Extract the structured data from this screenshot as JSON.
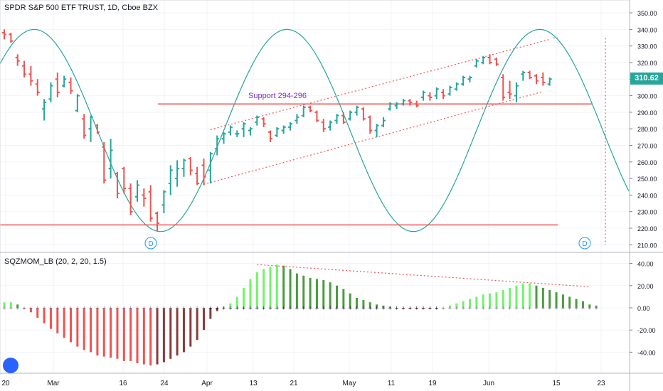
{
  "chart_data": [
    {
      "type": "ohlc",
      "title": "SPDR S&P 500 ETF TRUST, 1D, Cboe BZX",
      "last_price_label": "310.62",
      "ylim": [
        205,
        354
      ],
      "yticks": [
        "210.00",
        "220.00",
        "230.00",
        "240.00",
        "250.00",
        "260.00",
        "270.00",
        "280.00",
        "290.00",
        "300.00",
        "310.00",
        "320.00",
        "330.00",
        "340.00",
        "350.00"
      ],
      "xticks": [
        "20",
        "Mar",
        "16",
        "24",
        "Apr",
        "13",
        "21",
        "May",
        "11",
        "19",
        "Jun",
        "15",
        "23"
      ],
      "colors": {
        "up": "#26a69a",
        "down": "#ef5350"
      },
      "bars": [
        {
          "o": 338,
          "h": 340,
          "l": 334,
          "c": 337
        },
        {
          "o": 337,
          "h": 338,
          "l": 332,
          "c": 333
        },
        {
          "o": 323,
          "h": 325,
          "l": 318,
          "c": 321
        },
        {
          "o": 318,
          "h": 321,
          "l": 311,
          "c": 313
        },
        {
          "o": 313,
          "h": 318,
          "l": 306,
          "c": 309
        },
        {
          "o": 307,
          "h": 310,
          "l": 300,
          "c": 302
        },
        {
          "o": 292,
          "h": 298,
          "l": 285,
          "c": 296
        },
        {
          "o": 298,
          "h": 308,
          "l": 296,
          "c": 306
        },
        {
          "o": 310,
          "h": 314,
          "l": 299,
          "c": 302
        },
        {
          "o": 306,
          "h": 312,
          "l": 305,
          "c": 310
        },
        {
          "o": 308,
          "h": 311,
          "l": 301,
          "c": 303
        },
        {
          "o": 291,
          "h": 301,
          "l": 290,
          "c": 300
        },
        {
          "o": 286,
          "h": 289,
          "l": 274,
          "c": 276
        },
        {
          "o": 280,
          "h": 288,
          "l": 272,
          "c": 287
        },
        {
          "o": 282,
          "h": 283,
          "l": 277,
          "c": 278
        },
        {
          "o": 269,
          "h": 272,
          "l": 247,
          "c": 249
        },
        {
          "o": 256,
          "h": 274,
          "l": 250,
          "c": 267
        },
        {
          "o": 253,
          "h": 254,
          "l": 238,
          "c": 241
        },
        {
          "o": 256,
          "h": 257,
          "l": 241,
          "c": 244
        },
        {
          "o": 244,
          "h": 247,
          "l": 228,
          "c": 230
        },
        {
          "o": 239,
          "h": 249,
          "l": 236,
          "c": 246
        },
        {
          "o": 240,
          "h": 244,
          "l": 233,
          "c": 238
        },
        {
          "o": 242,
          "h": 246,
          "l": 224,
          "c": 226
        },
        {
          "o": 229,
          "h": 230,
          "l": 218,
          "c": 223
        },
        {
          "o": 234,
          "h": 243,
          "l": 229,
          "c": 242
        },
        {
          "o": 247,
          "h": 258,
          "l": 240,
          "c": 255
        },
        {
          "o": 250,
          "h": 261,
          "l": 245,
          "c": 256
        },
        {
          "o": 256,
          "h": 262,
          "l": 251,
          "c": 261
        },
        {
          "o": 262,
          "h": 263,
          "l": 252,
          "c": 255
        },
        {
          "o": 253,
          "h": 257,
          "l": 246,
          "c": 247
        },
        {
          "o": 258,
          "h": 262,
          "l": 246,
          "c": 251
        },
        {
          "o": 255,
          "h": 266,
          "l": 247,
          "c": 265
        },
        {
          "o": 268,
          "h": 276,
          "l": 264,
          "c": 274
        },
        {
          "o": 274,
          "h": 278,
          "l": 271,
          "c": 277
        },
        {
          "o": 278,
          "h": 282,
          "l": 276,
          "c": 281
        },
        {
          "o": 277,
          "h": 279,
          "l": 275,
          "c": 277
        },
        {
          "o": 280,
          "h": 284,
          "l": 275,
          "c": 283
        },
        {
          "o": 279,
          "h": 281,
          "l": 276,
          "c": 280
        },
        {
          "o": 284,
          "h": 288,
          "l": 282,
          "c": 287
        },
        {
          "o": 286,
          "h": 287,
          "l": 281,
          "c": 283
        },
        {
          "o": 278,
          "h": 279,
          "l": 272,
          "c": 274
        },
        {
          "o": 276,
          "h": 281,
          "l": 275,
          "c": 280
        },
        {
          "o": 279,
          "h": 282,
          "l": 277,
          "c": 281
        },
        {
          "o": 281,
          "h": 284,
          "l": 279,
          "c": 283
        },
        {
          "o": 285,
          "h": 289,
          "l": 283,
          "c": 287
        },
        {
          "o": 288,
          "h": 294,
          "l": 287,
          "c": 293
        },
        {
          "o": 293,
          "h": 294,
          "l": 290,
          "c": 291
        },
        {
          "o": 290,
          "h": 291,
          "l": 284,
          "c": 285
        },
        {
          "o": 284,
          "h": 286,
          "l": 278,
          "c": 280
        },
        {
          "o": 281,
          "h": 285,
          "l": 279,
          "c": 284
        },
        {
          "o": 285,
          "h": 289,
          "l": 283,
          "c": 288
        },
        {
          "o": 288,
          "h": 290,
          "l": 283,
          "c": 284
        },
        {
          "o": 286,
          "h": 291,
          "l": 285,
          "c": 290
        },
        {
          "o": 290,
          "h": 294,
          "l": 288,
          "c": 293
        },
        {
          "o": 292,
          "h": 293,
          "l": 285,
          "c": 286
        },
        {
          "o": 287,
          "h": 288,
          "l": 277,
          "c": 279
        },
        {
          "o": 279,
          "h": 283,
          "l": 275,
          "c": 282
        },
        {
          "o": 282,
          "h": 287,
          "l": 281,
          "c": 285
        },
        {
          "o": 292,
          "h": 296,
          "l": 291,
          "c": 295
        },
        {
          "o": 294,
          "h": 296,
          "l": 292,
          "c": 295
        },
        {
          "o": 295,
          "h": 298,
          "l": 294,
          "c": 297
        },
        {
          "o": 297,
          "h": 298,
          "l": 294,
          "c": 296
        },
        {
          "o": 295,
          "h": 297,
          "l": 293,
          "c": 294
        },
        {
          "o": 299,
          "h": 303,
          "l": 297,
          "c": 302
        },
        {
          "o": 300,
          "h": 302,
          "l": 297,
          "c": 299
        },
        {
          "o": 300,
          "h": 305,
          "l": 298,
          "c": 304
        },
        {
          "o": 302,
          "h": 304,
          "l": 298,
          "c": 300
        },
        {
          "o": 301,
          "h": 306,
          "l": 300,
          "c": 305
        },
        {
          "o": 304,
          "h": 308,
          "l": 303,
          "c": 307
        },
        {
          "o": 307,
          "h": 312,
          "l": 306,
          "c": 311
        },
        {
          "o": 310,
          "h": 312,
          "l": 308,
          "c": 311
        },
        {
          "o": 318,
          "h": 322,
          "l": 317,
          "c": 321
        },
        {
          "o": 320,
          "h": 324,
          "l": 319,
          "c": 323
        },
        {
          "o": 323,
          "h": 325,
          "l": 319,
          "c": 320
        },
        {
          "o": 322,
          "h": 323,
          "l": 318,
          "c": 319
        },
        {
          "o": 311,
          "h": 313,
          "l": 297,
          "c": 299
        },
        {
          "o": 302,
          "h": 309,
          "l": 298,
          "c": 301
        },
        {
          "o": 300,
          "h": 308,
          "l": 296,
          "c": 306
        },
        {
          "o": 313,
          "h": 315,
          "l": 309,
          "c": 314
        },
        {
          "o": 314,
          "h": 315,
          "l": 310,
          "c": 311
        },
        {
          "o": 312,
          "h": 313,
          "l": 307,
          "c": 309
        },
        {
          "o": 311,
          "h": 314,
          "l": 306,
          "c": 308
        },
        {
          "o": 307,
          "h": 311,
          "l": 306,
          "c": 310
        }
      ],
      "annotations": {
        "support_text": "Support 294-296",
        "event_markers": [
          "D",
          "D"
        ],
        "support_level": 295,
        "low_level": 222,
        "cycle": {
          "low_value": 218,
          "high_value": 340,
          "low_bars": [
            23.5,
            61.5
          ],
          "high_bars": [
            42.5,
            80.5
          ]
        },
        "channel_upper": [
          [
            31,
            279.5
          ],
          [
            82,
            334
          ]
        ],
        "channel_lower": [
          [
            30,
            246.5
          ],
          [
            81,
            302.5
          ]
        ],
        "dividend_projection_to": 210
      }
    },
    {
      "type": "histogram",
      "title": "SQZMOM_LB (20, 2, 20, 1.5)",
      "ylim": [
        -62,
        46
      ],
      "yticks": [
        "40.00",
        "20.00",
        "0.00",
        "-20.00",
        "-40.00"
      ],
      "values": [
        5,
        5,
        3,
        -1,
        -4,
        -9,
        -14,
        -19,
        -23,
        -27,
        -31,
        -35,
        -38,
        -40,
        -43,
        -44,
        -45,
        -46,
        -48,
        -48,
        -50,
        -51,
        -52,
        -51,
        -49,
        -46,
        -43,
        -40,
        -35,
        -29,
        -20,
        -10,
        -3,
        1,
        4,
        10,
        18,
        26,
        32,
        35,
        37,
        39,
        38,
        35,
        31,
        29,
        27,
        26,
        25,
        23,
        20,
        17,
        13,
        9,
        7,
        5,
        3,
        2,
        1,
        0,
        -1,
        -1,
        -1,
        -1,
        -1,
        -1,
        0,
        2,
        4,
        6,
        8,
        10,
        12,
        13,
        14,
        16,
        18,
        20,
        22,
        22,
        20,
        18,
        16,
        14,
        12,
        10,
        8,
        6,
        3,
        2
      ],
      "trend_line": [
        [
          38,
          39
        ],
        [
          88,
          19
        ]
      ],
      "colors": {
        "pos_up": "#73f36d",
        "pos_down": "#4a9c3e",
        "neg_down": "#ef5350",
        "neg_up": "#8b3a3a"
      }
    }
  ]
}
